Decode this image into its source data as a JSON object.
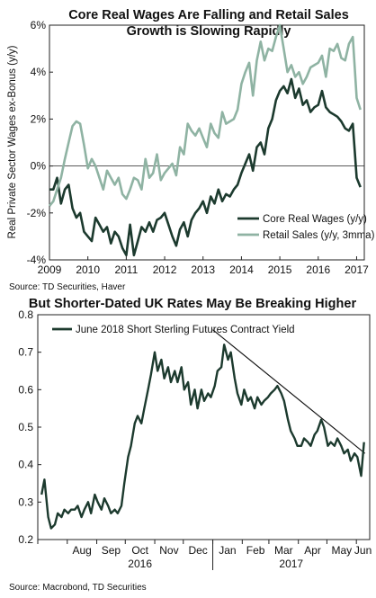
{
  "chart_data": [
    {
      "type": "line",
      "title": "Core Real Wages Are Falling and Retail Sales",
      "subtitle": "Growth is Slowing Rapidly",
      "ylabel": "Real Private Sector Wages ex-Bonus (y/y)",
      "xlabel": "",
      "source": "Source: TD Securities, Haver",
      "x_ticks": [
        "2009",
        "2010",
        "2011",
        "2012",
        "2013",
        "2014",
        "2015",
        "2016",
        "2017"
      ],
      "y_ticks": [
        "-4%",
        "-2%",
        "0%",
        "2%",
        "4%",
        "6%"
      ],
      "xlim": [
        2009,
        2017.2
      ],
      "ylim": [
        -4,
        6
      ],
      "grid": false,
      "legend_position": "bottom-right",
      "series": [
        {
          "name": "Core Real Wages (y/y)",
          "color": "#1c3a2e",
          "x": [
            2009.0,
            2009.1,
            2009.2,
            2009.3,
            2009.4,
            2009.5,
            2009.6,
            2009.7,
            2009.8,
            2009.9,
            2010.0,
            2010.1,
            2010.2,
            2010.3,
            2010.4,
            2010.5,
            2010.6,
            2010.7,
            2010.8,
            2010.9,
            2011.0,
            2011.1,
            2011.2,
            2011.3,
            2011.4,
            2011.5,
            2011.6,
            2011.7,
            2011.8,
            2011.9,
            2012.0,
            2012.1,
            2012.2,
            2012.3,
            2012.4,
            2012.5,
            2012.6,
            2012.7,
            2012.8,
            2012.9,
            2013.0,
            2013.1,
            2013.2,
            2013.3,
            2013.4,
            2013.5,
            2013.6,
            2013.7,
            2013.8,
            2013.9,
            2014.0,
            2014.1,
            2014.2,
            2014.3,
            2014.4,
            2014.5,
            2014.6,
            2014.7,
            2014.8,
            2014.9,
            2015.0,
            2015.1,
            2015.2,
            2015.3,
            2015.4,
            2015.5,
            2015.6,
            2015.7,
            2015.8,
            2015.9,
            2016.0,
            2016.1,
            2016.2,
            2016.3,
            2016.4,
            2016.5,
            2016.6,
            2016.7,
            2016.8,
            2016.9,
            2017.0,
            2017.1
          ],
          "values": [
            -1.0,
            -1.0,
            -0.5,
            -1.6,
            -1.0,
            -0.8,
            -1.8,
            -2.2,
            -2.0,
            -2.8,
            -3.0,
            -3.2,
            -2.2,
            -2.5,
            -2.8,
            -2.6,
            -3.3,
            -2.8,
            -3.0,
            -3.5,
            -3.8,
            -2.5,
            -3.8,
            -3.2,
            -2.6,
            -2.8,
            -2.4,
            -2.8,
            -2.3,
            -2.2,
            -2.0,
            -2.5,
            -3.0,
            -3.4,
            -2.7,
            -2.4,
            -3.0,
            -2.3,
            -2.0,
            -1.8,
            -1.5,
            -2.0,
            -1.3,
            -1.6,
            -1.0,
            -1.5,
            -1.2,
            -1.3,
            -1.0,
            -0.8,
            -0.3,
            0.1,
            0.5,
            -0.2,
            0.8,
            1.0,
            0.5,
            1.6,
            2.0,
            2.8,
            3.2,
            3.4,
            3.1,
            3.7,
            2.9,
            3.3,
            2.6,
            2.8,
            2.3,
            2.5,
            2.6,
            3.2,
            2.5,
            2.3,
            2.2,
            2.1,
            1.9,
            1.6,
            1.5,
            1.8,
            -0.5,
            -0.9
          ]
        },
        {
          "name": "Retail Sales (y/y, 3mma)",
          "color": "#8fb3a3",
          "x": [
            2009.0,
            2009.1,
            2009.2,
            2009.3,
            2009.4,
            2009.5,
            2009.6,
            2009.7,
            2009.8,
            2009.9,
            2010.0,
            2010.1,
            2010.2,
            2010.3,
            2010.4,
            2010.5,
            2010.6,
            2010.7,
            2010.8,
            2010.9,
            2011.0,
            2011.1,
            2011.2,
            2011.3,
            2011.4,
            2011.5,
            2011.6,
            2011.7,
            2011.8,
            2011.9,
            2012.0,
            2012.1,
            2012.2,
            2012.3,
            2012.4,
            2012.5,
            2012.6,
            2012.7,
            2012.8,
            2012.9,
            2013.0,
            2013.1,
            2013.2,
            2013.3,
            2013.4,
            2013.5,
            2013.6,
            2013.7,
            2013.8,
            2013.9,
            2014.0,
            2014.1,
            2014.2,
            2014.3,
            2014.4,
            2014.5,
            2014.6,
            2014.7,
            2014.8,
            2014.9,
            2015.0,
            2015.1,
            2015.2,
            2015.3,
            2015.4,
            2015.5,
            2015.6,
            2015.7,
            2015.8,
            2015.9,
            2016.0,
            2016.1,
            2016.2,
            2016.3,
            2016.4,
            2016.5,
            2016.6,
            2016.7,
            2016.8,
            2016.9,
            2017.0,
            2017.1
          ],
          "values": [
            -1.7,
            -1.5,
            -1.0,
            -0.5,
            0.3,
            1.0,
            1.7,
            1.9,
            1.8,
            0.9,
            -0.1,
            0.3,
            0.0,
            -0.5,
            -1.0,
            -0.2,
            -0.5,
            -0.8,
            -0.5,
            -1.2,
            -1.4,
            -1.0,
            -0.5,
            -0.6,
            -1.0,
            0.3,
            -0.5,
            -0.3,
            0.5,
            -0.6,
            -0.3,
            -0.1,
            0.1,
            -0.4,
            0.8,
            0.5,
            1.8,
            1.5,
            1.3,
            1.6,
            1.2,
            0.8,
            1.8,
            1.4,
            1.2,
            2.3,
            1.8,
            1.9,
            2.0,
            2.4,
            3.5,
            4.0,
            4.4,
            3.0,
            4.5,
            5.3,
            4.5,
            5.0,
            4.9,
            5.5,
            6.0,
            5.0,
            4.0,
            4.3,
            3.8,
            4.0,
            3.5,
            3.8,
            4.2,
            4.3,
            4.4,
            4.7,
            3.8,
            5.0,
            4.9,
            5.2,
            4.6,
            4.5,
            5.2,
            5.5,
            2.9,
            2.4
          ]
        }
      ]
    },
    {
      "type": "line",
      "title": "But Shorter-Dated UK Rates May Be Breaking Higher",
      "source": "Source: Macrobond, TD Securities",
      "x_ticks": [
        "Aug",
        "Sep",
        "Oct",
        "Nov",
        "Dec",
        "Jan",
        "Feb",
        "Mar",
        "Apr",
        "May",
        "Jun"
      ],
      "x_group_labels": [
        "2016",
        "2017"
      ],
      "y_ticks": [
        "0.2",
        "0.3",
        "0.4",
        "0.5",
        "0.6",
        "0.7",
        "0.8"
      ],
      "ylim": [
        0.2,
        0.8
      ],
      "grid": false,
      "legend_position": "top-left",
      "trendline": {
        "from": {
          "x": "2017-01-01",
          "y": 0.76
        },
        "to": {
          "x": "2017-06-10",
          "y": 0.43
        }
      },
      "series": [
        {
          "name": "June 2018 Short Sterling Futures Contract Yield",
          "color": "#1c3a2e",
          "x": [
            "2016-07-05",
            "2016-07-08",
            "2016-07-12",
            "2016-07-15",
            "2016-07-19",
            "2016-07-22",
            "2016-07-26",
            "2016-07-29",
            "2016-08-02",
            "2016-08-05",
            "2016-08-09",
            "2016-08-12",
            "2016-08-16",
            "2016-08-19",
            "2016-08-23",
            "2016-08-26",
            "2016-08-30",
            "2016-09-02",
            "2016-09-06",
            "2016-09-09",
            "2016-09-13",
            "2016-09-16",
            "2016-09-20",
            "2016-09-23",
            "2016-09-27",
            "2016-09-30",
            "2016-10-04",
            "2016-10-07",
            "2016-10-11",
            "2016-10-14",
            "2016-10-18",
            "2016-10-21",
            "2016-10-25",
            "2016-10-28",
            "2016-11-01",
            "2016-11-04",
            "2016-11-08",
            "2016-11-11",
            "2016-11-15",
            "2016-11-18",
            "2016-11-22",
            "2016-11-25",
            "2016-11-29",
            "2016-12-02",
            "2016-12-06",
            "2016-12-09",
            "2016-12-13",
            "2016-12-16",
            "2016-12-20",
            "2016-12-23",
            "2016-12-27",
            "2016-12-30",
            "2017-01-03",
            "2017-01-06",
            "2017-01-10",
            "2017-01-13",
            "2017-01-17",
            "2017-01-20",
            "2017-01-24",
            "2017-01-27",
            "2017-01-31",
            "2017-02-03",
            "2017-02-07",
            "2017-02-10",
            "2017-02-14",
            "2017-02-17",
            "2017-02-21",
            "2017-02-24",
            "2017-02-28",
            "2017-03-03",
            "2017-03-07",
            "2017-03-10",
            "2017-03-14",
            "2017-03-17",
            "2017-03-21",
            "2017-03-24",
            "2017-03-28",
            "2017-03-31",
            "2017-04-04",
            "2017-04-07",
            "2017-04-11",
            "2017-04-14",
            "2017-04-18",
            "2017-04-21",
            "2017-04-25",
            "2017-04-28",
            "2017-05-02",
            "2017-05-05",
            "2017-05-09",
            "2017-05-12",
            "2017-05-16",
            "2017-05-19",
            "2017-05-23",
            "2017-05-26",
            "2017-05-30",
            "2017-06-02",
            "2017-06-06",
            "2017-06-09"
          ],
          "values": [
            0.32,
            0.36,
            0.26,
            0.23,
            0.24,
            0.27,
            0.26,
            0.28,
            0.27,
            0.28,
            0.28,
            0.29,
            0.26,
            0.28,
            0.3,
            0.27,
            0.32,
            0.3,
            0.28,
            0.31,
            0.29,
            0.27,
            0.28,
            0.27,
            0.29,
            0.35,
            0.42,
            0.45,
            0.51,
            0.53,
            0.51,
            0.55,
            0.6,
            0.64,
            0.7,
            0.65,
            0.68,
            0.63,
            0.66,
            0.62,
            0.65,
            0.62,
            0.66,
            0.6,
            0.62,
            0.56,
            0.6,
            0.55,
            0.6,
            0.57,
            0.59,
            0.58,
            0.61,
            0.65,
            0.66,
            0.72,
            0.68,
            0.7,
            0.63,
            0.59,
            0.56,
            0.6,
            0.57,
            0.58,
            0.55,
            0.58,
            0.56,
            0.57,
            0.58,
            0.59,
            0.6,
            0.61,
            0.59,
            0.57,
            0.52,
            0.49,
            0.47,
            0.45,
            0.45,
            0.47,
            0.46,
            0.45,
            0.48,
            0.49,
            0.52,
            0.5,
            0.45,
            0.46,
            0.45,
            0.47,
            0.45,
            0.43,
            0.44,
            0.41,
            0.43,
            0.42,
            0.37,
            0.46
          ]
        }
      ]
    }
  ]
}
